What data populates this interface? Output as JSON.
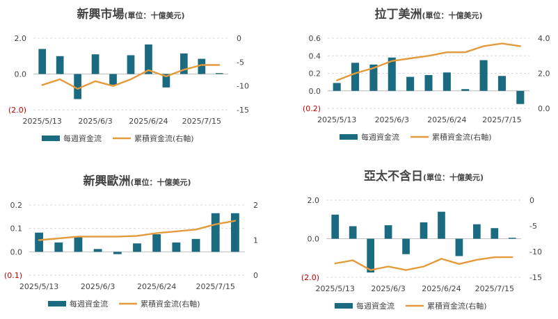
{
  "colors": {
    "bar": "#1b6b80",
    "line": "#e39a3b",
    "negative_label": "#c00000",
    "text": "#444444"
  },
  "legend": {
    "bar_label": "每週資金流",
    "line_label": "累積資金流(右軸)"
  },
  "chart_data": [
    {
      "type": "bar+line",
      "title": "新興市場",
      "title_unit": "(單位：十億美元)",
      "x_ticks": [
        "2025/5/13",
        "2025/6/3",
        "2025/6/24",
        "2025/7/15"
      ],
      "y_left": {
        "ticks": [
          "2.0",
          "0.0",
          "(2.0)"
        ],
        "tick_values": [
          2,
          0,
          -2
        ],
        "range": [
          -2,
          2
        ]
      },
      "y_right": {
        "ticks": [
          "0",
          "-5",
          "-10",
          "-15"
        ],
        "tick_values": [
          0,
          -5,
          -10,
          -15
        ],
        "range": [
          -15,
          0
        ]
      },
      "series": [
        {
          "name": "每週資金流",
          "axis": "left",
          "values": [
            1.4,
            1.0,
            -1.4,
            1.1,
            -0.6,
            1.05,
            1.65,
            -0.75,
            1.15,
            0.85,
            0.05
          ]
        },
        {
          "name": "累積資金流(右軸)",
          "axis": "right",
          "values": [
            -9.8,
            -8.6,
            -10.6,
            -9.0,
            -10.0,
            -8.6,
            -6.7,
            -8.0,
            -6.6,
            -5.6,
            -5.6
          ]
        }
      ]
    },
    {
      "type": "bar+line",
      "title": "拉丁美洲",
      "title_unit": "(單位：十億美元)",
      "x_ticks": [
        "2025/5/13",
        "2025/6/3",
        "2025/6/24",
        "2025/7/15"
      ],
      "y_left": {
        "ticks": [
          "0.6",
          "0.4",
          "0.2",
          "0.0",
          "(0.2)"
        ],
        "tick_values": [
          0.6,
          0.4,
          0.2,
          0,
          -0.2
        ],
        "range": [
          -0.2,
          0.6
        ]
      },
      "y_right": {
        "ticks": [
          "4.0",
          "2.0",
          "0.0"
        ],
        "tick_values": [
          4,
          2,
          0
        ],
        "range": [
          0,
          4
        ]
      },
      "series": [
        {
          "name": "每週資金流",
          "axis": "left",
          "values": [
            0.09,
            0.32,
            0.3,
            0.38,
            0.16,
            0.18,
            0.21,
            0.02,
            0.35,
            0.17,
            -0.15
          ]
        },
        {
          "name": "累積資金流(右軸)",
          "axis": "right",
          "values": [
            1.6,
            2.0,
            2.3,
            2.7,
            2.85,
            3.0,
            3.2,
            3.2,
            3.55,
            3.7,
            3.55
          ]
        }
      ]
    },
    {
      "type": "bar+line",
      "title": "新興歐洲",
      "title_unit": "(單位：十億美元)",
      "x_ticks": [
        "2025/5/13",
        "2025/6/3",
        "2025/6/24",
        "2025/7/15"
      ],
      "y_left": {
        "ticks": [
          "0.2",
          "0.1",
          "0.0",
          "(0.1)"
        ],
        "tick_values": [
          0.2,
          0.1,
          0,
          -0.1
        ],
        "range": [
          -0.1,
          0.2
        ]
      },
      "y_right": {
        "ticks": [
          "2",
          "1",
          "0"
        ],
        "tick_values": [
          2,
          1,
          0
        ],
        "range": [
          0,
          2
        ]
      },
      "series": [
        {
          "name": "每週資金流",
          "axis": "left",
          "values": [
            0.082,
            0.04,
            0.065,
            0.012,
            -0.01,
            0.036,
            0.075,
            0.04,
            0.055,
            0.165,
            0.165
          ]
        },
        {
          "name": "累積資金流(右軸)",
          "axis": "right",
          "values": [
            1.0,
            1.05,
            1.1,
            1.1,
            1.1,
            1.12,
            1.2,
            1.25,
            1.3,
            1.45,
            1.55
          ]
        }
      ]
    },
    {
      "type": "bar+line",
      "title": "亞太不含日",
      "title_unit": "(單位：十億美元)",
      "x_ticks": [
        "2025/5/13",
        "2025/6/3",
        "2025/6/24",
        "2025/7/15"
      ],
      "y_left": {
        "ticks": [
          "2.0",
          "0.0",
          "(2.0)"
        ],
        "tick_values": [
          2,
          0,
          -2
        ],
        "range": [
          -2,
          2
        ]
      },
      "y_right": {
        "ticks": [
          "0",
          "-5",
          "-10",
          "-15"
        ],
        "tick_values": [
          0,
          -5,
          -10,
          -15
        ],
        "range": [
          -15,
          0
        ]
      },
      "series": [
        {
          "name": "每週資金流",
          "axis": "left",
          "values": [
            1.25,
            0.65,
            -1.75,
            0.7,
            -0.8,
            0.85,
            1.4,
            -0.9,
            0.75,
            0.55,
            0.05
          ]
        },
        {
          "name": "累積資金流(右軸)",
          "axis": "right",
          "values": [
            -12.3,
            -11.7,
            -13.6,
            -12.9,
            -13.6,
            -12.9,
            -11.4,
            -12.4,
            -11.6,
            -11.1,
            -11.1
          ]
        }
      ]
    }
  ]
}
